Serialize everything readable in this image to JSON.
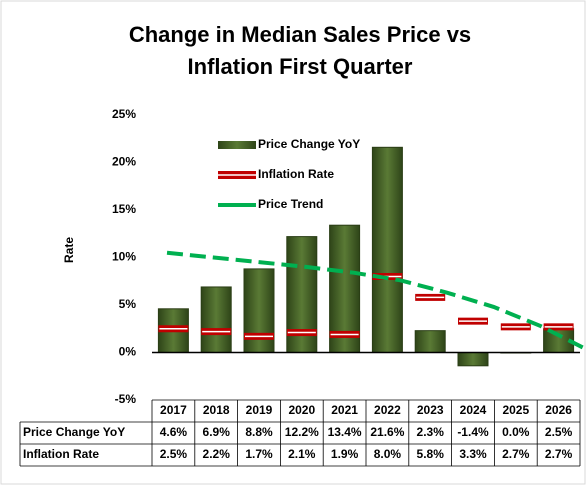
{
  "chart_data": {
    "type": "bar",
    "title": "Change in Median Sales Price vs Inflation First Quarter",
    "y_label": "Rate",
    "categories": [
      "2017",
      "2018",
      "2019",
      "2020",
      "2021",
      "2022",
      "2023",
      "2024",
      "2025",
      "2026"
    ],
    "series": [
      {
        "name": "Price Change YoY",
        "type": "bar",
        "color": "#3d5a22",
        "values": [
          4.6,
          6.9,
          8.8,
          12.2,
          13.4,
          21.6,
          2.3,
          -1.4,
          0.0,
          2.5
        ],
        "value_labels": [
          "4.6%",
          "6.9%",
          "8.8%",
          "12.2%",
          "13.4%",
          "21.6%",
          "2.3%",
          "-1.4%",
          "0.0%",
          "2.5%"
        ]
      },
      {
        "name": "Inflation Rate",
        "type": "marker",
        "color": "#c00000",
        "values": [
          2.5,
          2.2,
          1.7,
          2.1,
          1.9,
          8.0,
          5.8,
          3.3,
          2.7,
          2.7
        ],
        "value_labels": [
          "2.5%",
          "2.2%",
          "1.7%",
          "2.1%",
          "1.9%",
          "8.0%",
          "5.8%",
          "3.3%",
          "2.7%",
          "2.7%"
        ]
      },
      {
        "name": "Price Trend",
        "type": "trend",
        "color": "#00b050",
        "values": [
          10.5,
          10.0,
          9.5,
          9.0,
          8.4,
          7.6,
          6.3,
          4.8,
          2.8,
          0.3
        ]
      }
    ],
    "ylim": [
      -5,
      25
    ],
    "yticks": [
      {
        "value": -5,
        "label": "-5%"
      },
      {
        "value": 0,
        "label": "0%"
      },
      {
        "value": 5,
        "label": "5%"
      },
      {
        "value": 10,
        "label": "10%"
      },
      {
        "value": 15,
        "label": "15%"
      },
      {
        "value": 20,
        "label": "20%"
      },
      {
        "value": 25,
        "label": "25%"
      }
    ],
    "legend": "top-left"
  }
}
